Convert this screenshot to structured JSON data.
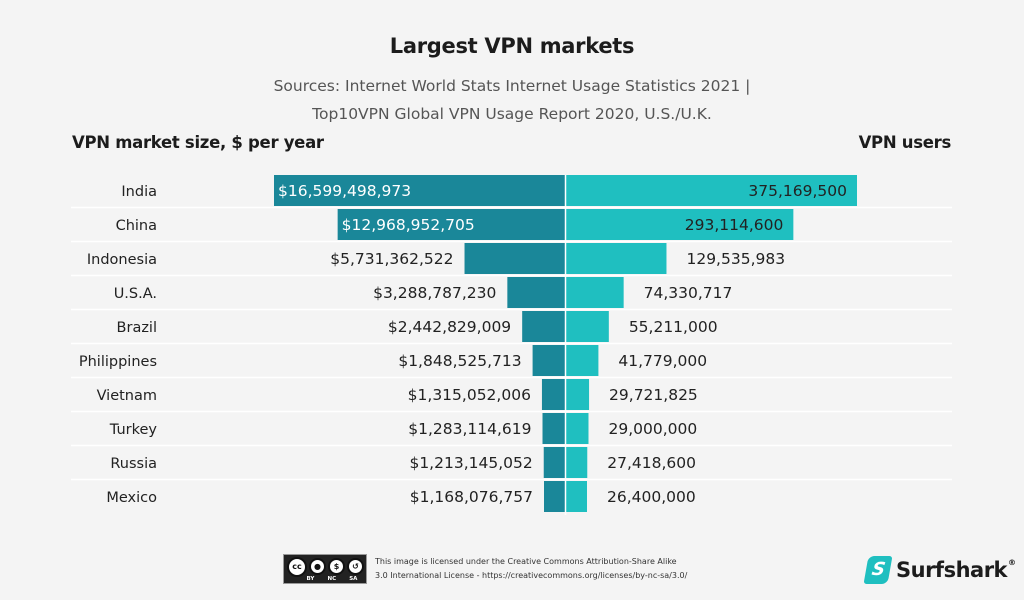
{
  "chart_data": {
    "type": "bar",
    "orientation": "horizontal-diverging",
    "title": "Largest VPN markets",
    "subtitle_lines": [
      "Sources: Internet World Stats Internet Usage Statistics 2021 |",
      "Top10VPN Global VPN Usage Report 2020, U.S./U.K."
    ],
    "left_axis_label": "VPN market size, $ per year",
    "right_axis_label": "VPN users",
    "categories": [
      "India",
      "China",
      "Indonesia",
      "U.S.A.",
      "Brazil",
      "Philippines",
      "Vietnam",
      "Turkey",
      "Russia",
      "Mexico"
    ],
    "series": [
      {
        "name": "VPN market size, $ per year",
        "side": "left",
        "color": "#1a8799",
        "values": [
          16599498973,
          12968952705,
          5731362522,
          3288787230,
          2442829009,
          1848525713,
          1315052006,
          1283114619,
          1213145052,
          1168076757
        ],
        "labels": [
          "$16,599,498,973",
          "$12,968,952,705",
          "$5,731,362,522",
          "$3,288,787,230",
          "$2,442,829,009",
          "$1,848,525,713",
          "$1,315,052,006",
          "$1,283,114,619",
          "$1,213,145,052",
          "$1,168,076,757"
        ]
      },
      {
        "name": "VPN users",
        "side": "right",
        "color": "#1fbfc0",
        "values": [
          375169500,
          293114600,
          129535983,
          74330717,
          55211000,
          41779000,
          29721825,
          29000000,
          27418600,
          26400000
        ],
        "labels": [
          "375,169,500",
          "293,114,600",
          "129,535,983",
          "74,330,717",
          "55,211,000",
          "41,779,000",
          "29,721,825",
          "29,000,000",
          "27,418,600",
          "26,400,000"
        ]
      }
    ],
    "grid": false
  },
  "footer": {
    "cc_badge_labels": [
      "BY",
      "NC",
      "SA"
    ],
    "cc_symbol": "cc",
    "license_line1": "This image is licensed under the Creative Commons Attribution-Share Alike",
    "license_line2": "3.0 International License - https://creativecommons.org/licenses/by-nc-sa/3.0/",
    "brand_name": "Surfshark",
    "brand_mark": "®",
    "brand_logo_glyph": "S"
  }
}
